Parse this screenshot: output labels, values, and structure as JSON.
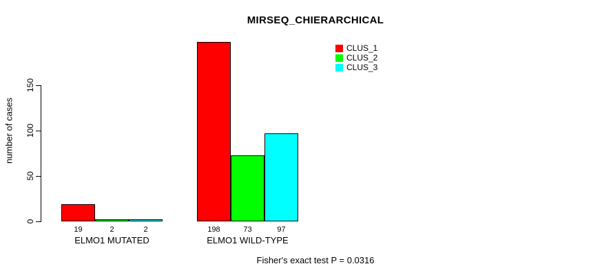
{
  "chart_data": {
    "type": "bar",
    "title": "MIRSEQ_CHIERARCHICAL",
    "ylabel": "number of cases",
    "xlabel": "",
    "ylim": [
      0,
      150
    ],
    "yticks": [
      0,
      50,
      100,
      150
    ],
    "categories": [
      "ELMO1 MUTATED",
      "ELMO1 WILD-TYPE"
    ],
    "series": [
      {
        "name": "CLUS_1",
        "color": "#ff0000",
        "values": [
          19,
          198
        ]
      },
      {
        "name": "CLUS_2",
        "color": "#00ff00",
        "values": [
          2,
          73
        ]
      },
      {
        "name": "CLUS_3",
        "color": "#00ffff",
        "values": [
          2,
          97
        ]
      }
    ],
    "bar_value_labels_shown": true,
    "grid": false,
    "legend_position": "top-right",
    "bar_border_color": "#000000",
    "annotation": "Fisher's exact test P = 0.0316"
  }
}
